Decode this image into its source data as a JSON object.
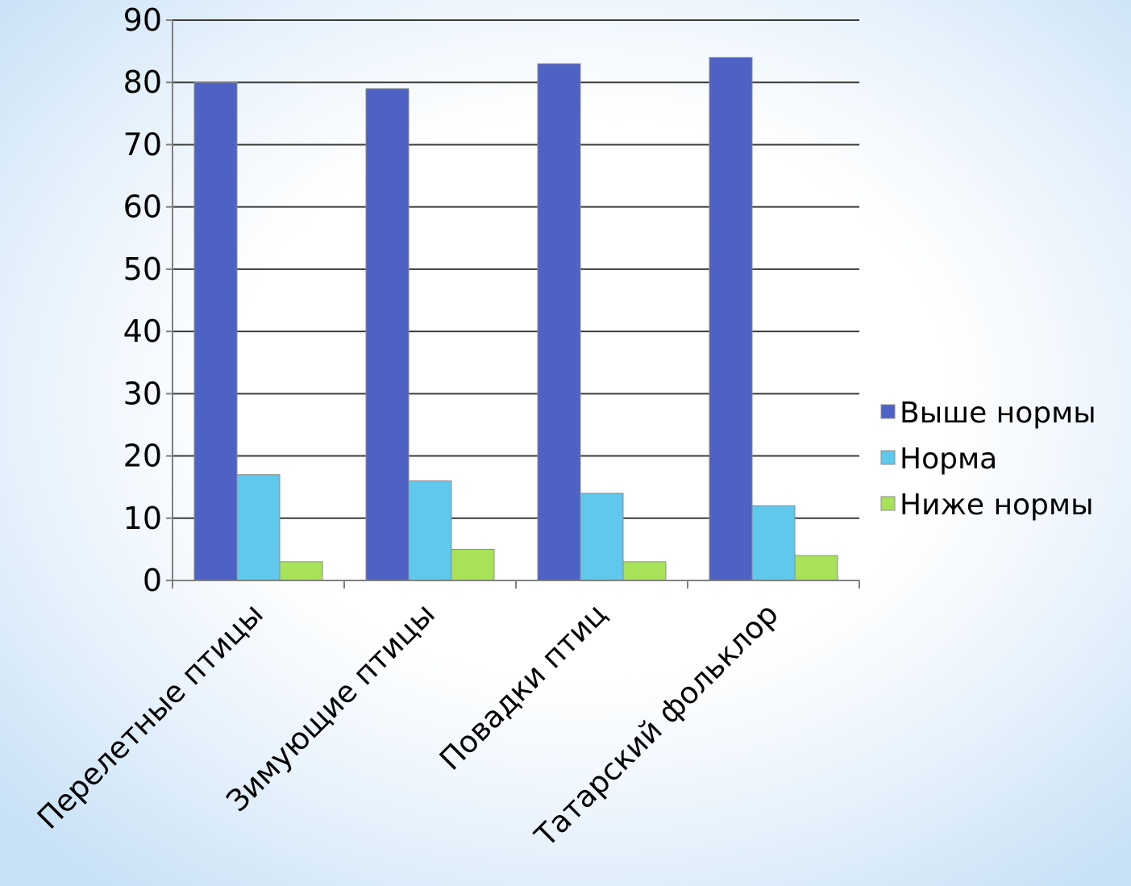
{
  "chart_data": {
    "type": "bar",
    "categories": [
      "Перелетные птицы",
      "Зимующие птицы",
      "Повадки птиц",
      "Татарский фольклор"
    ],
    "series": [
      {
        "name": "Выше нормы",
        "values": [
          80,
          79,
          83,
          84
        ],
        "color": "#4e62c5"
      },
      {
        "name": "Норма",
        "values": [
          17,
          16,
          14,
          12
        ],
        "color": "#5fc8ec"
      },
      {
        "name": "Ниже нормы",
        "values": [
          3,
          5,
          3,
          4
        ],
        "color": "#a8e259"
      }
    ],
    "yticks": [
      "0",
      "10",
      "20",
      "30",
      "40",
      "50",
      "60",
      "70",
      "80",
      "90"
    ],
    "ylim": [
      0,
      90
    ],
    "grid": true,
    "legend_position": "right",
    "title": "",
    "xlabel": "",
    "ylabel": ""
  }
}
